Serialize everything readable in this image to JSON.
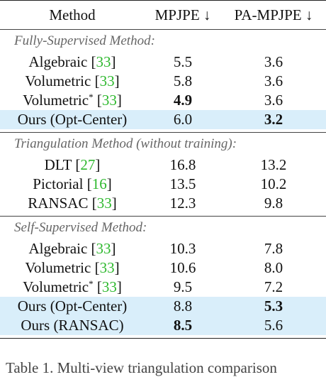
{
  "header": {
    "method": "Method",
    "mpjpe": "MPJPE ↓",
    "pa_mpjpe": "PA-MPJPE ↓"
  },
  "sections": [
    {
      "title": "Fully-Supervised Method:",
      "rows": [
        {
          "name": "Algebraic",
          "sup": "",
          "cite": "33",
          "mpjpe": "5.5",
          "pa": "3.6",
          "mpjpe_bold": false,
          "pa_bold": false,
          "highlight": false
        },
        {
          "name": "Volumetric",
          "sup": "",
          "cite": "33",
          "mpjpe": "5.8",
          "pa": "3.6",
          "mpjpe_bold": false,
          "pa_bold": false,
          "highlight": false
        },
        {
          "name": "Volumetric",
          "sup": "*",
          "cite": "33",
          "mpjpe": "4.9",
          "pa": "3.6",
          "mpjpe_bold": true,
          "pa_bold": false,
          "highlight": false
        },
        {
          "name": "Ours (Opt-Center)",
          "sup": "",
          "cite": "",
          "mpjpe": "6.0",
          "pa": "3.2",
          "mpjpe_bold": false,
          "pa_bold": true,
          "highlight": true
        }
      ]
    },
    {
      "title": "Triangulation Method (without training):",
      "rows": [
        {
          "name": "DLT",
          "sup": "",
          "cite": "27",
          "mpjpe": "16.8",
          "pa": "13.2",
          "mpjpe_bold": false,
          "pa_bold": false,
          "highlight": false
        },
        {
          "name": "Pictorial",
          "sup": "",
          "cite": "16",
          "mpjpe": "13.5",
          "pa": "10.2",
          "mpjpe_bold": false,
          "pa_bold": false,
          "highlight": false
        },
        {
          "name": "RANSAC",
          "sup": "",
          "cite": "33",
          "mpjpe": "12.3",
          "pa": "9.8",
          "mpjpe_bold": false,
          "pa_bold": false,
          "highlight": false
        }
      ]
    },
    {
      "title": "Self-Supervised Method:",
      "rows": [
        {
          "name": "Algebraic",
          "sup": "",
          "cite": "33",
          "mpjpe": "10.3",
          "pa": "7.8",
          "mpjpe_bold": false,
          "pa_bold": false,
          "highlight": false
        },
        {
          "name": "Volumetric",
          "sup": "",
          "cite": "33",
          "mpjpe": "10.6",
          "pa": "8.0",
          "mpjpe_bold": false,
          "pa_bold": false,
          "highlight": false
        },
        {
          "name": "Volumetric",
          "sup": "*",
          "cite": "33",
          "mpjpe": "9.5",
          "pa": "7.2",
          "mpjpe_bold": false,
          "pa_bold": false,
          "highlight": false
        },
        {
          "name": "Ours (Opt-Center)",
          "sup": "",
          "cite": "",
          "mpjpe": "8.8",
          "pa": "5.3",
          "mpjpe_bold": false,
          "pa_bold": true,
          "highlight": true
        },
        {
          "name": "Ours (RANSAC)",
          "sup": "",
          "cite": "",
          "mpjpe": "8.5",
          "pa": "5.6",
          "mpjpe_bold": true,
          "pa_bold": false,
          "highlight": true
        }
      ]
    }
  ],
  "caption": "Table 1.  Multi-view triangulation comparison"
}
